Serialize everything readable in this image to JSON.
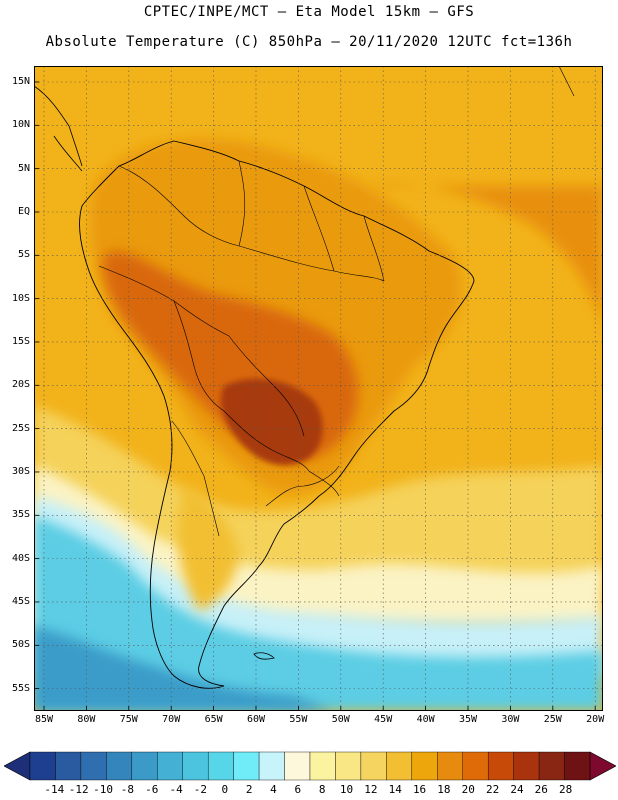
{
  "title": {
    "line1": "CPTEC/INPE/MCT –  Eta Model 15km – GFS",
    "line2": "Absolute Temperature (C) 850hPa – 20/11/2020 12UTC fct=136h"
  },
  "axes": {
    "lat_labels": [
      "15N",
      "10N",
      "5N",
      "EQ",
      "5S",
      "10S",
      "15S",
      "20S",
      "25S",
      "30S",
      "35S",
      "40S",
      "45S",
      "50S",
      "55S"
    ],
    "lon_labels": [
      "85W",
      "80W",
      "75W",
      "70W",
      "65W",
      "60W",
      "55W",
      "50W",
      "45W",
      "40W",
      "35W",
      "30W",
      "25W",
      "20W"
    ]
  },
  "colorbar": {
    "labels": [
      "-14",
      "-12",
      "-10",
      "-8",
      "-6",
      "-4",
      "-2",
      "0",
      "2",
      "4",
      "6",
      "8",
      "10",
      "12",
      "14",
      "16",
      "18",
      "20",
      "22",
      "24",
      "26",
      "28"
    ],
    "colors": [
      "#1e3f8f",
      "#2a5aa0",
      "#2f6fb0",
      "#3585bd",
      "#3b9ac8",
      "#43b0d4",
      "#4cc3df",
      "#57d6ea",
      "#6fecf7",
      "#c7f3fb",
      "#fdf8dc",
      "#fbf3a0",
      "#f8e784",
      "#f6d460",
      "#f2bf32",
      "#eda60b",
      "#e78b0f",
      "#df6b08",
      "#c84a08",
      "#a8330d",
      "#882513",
      "#6f1214"
    ],
    "under_color": "#1e2f7a",
    "over_color": "#7d0a2e"
  },
  "field": {
    "ocean_color": "#f2af18",
    "land_color": "#ea9a10",
    "hot_core_color": "#a83a0d",
    "cold_color": "#3fb0d8"
  }
}
